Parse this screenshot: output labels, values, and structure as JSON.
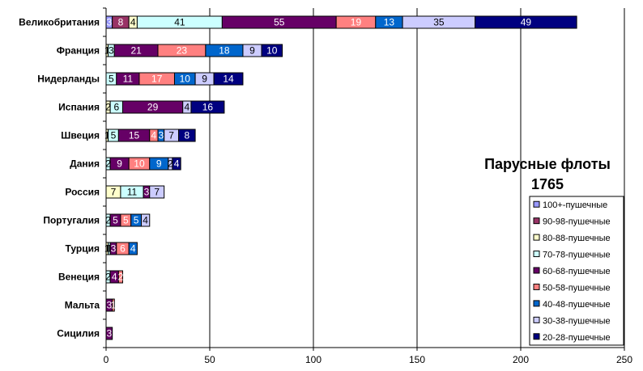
{
  "chart_data": {
    "type": "bar",
    "orientation": "horizontal",
    "stacked": true,
    "title_lines": [
      "Парусные флоты",
      "1765"
    ],
    "categories": [
      "Великобритания",
      "Франция",
      "Нидерланды",
      "Испания",
      "Швеция",
      "Дания",
      "Россия",
      "Португалия",
      "Турция",
      "Венеция",
      "Мальта",
      "Сицилия"
    ],
    "xlim": [
      0,
      250
    ],
    "xticks": [
      0,
      50,
      100,
      150,
      200,
      250
    ],
    "grid": true,
    "legend_position": "bottom-right",
    "series": [
      {
        "name": "100+-пушечные",
        "color": "#9999FF",
        "label_color": "#ffffff",
        "values": [
          3,
          0,
          0,
          0,
          0,
          0,
          0,
          0,
          0,
          0,
          0,
          0
        ]
      },
      {
        "name": "90-98-пушечные",
        "color": "#993366",
        "label_color": "#ffffff",
        "values": [
          8,
          0,
          0,
          0,
          0,
          0,
          0,
          0,
          0,
          0,
          0,
          0
        ]
      },
      {
        "name": "80-88-пушечные",
        "color": "#FFFFCC",
        "label_color": "#000000",
        "values": [
          4,
          1,
          0,
          2,
          1,
          0,
          7,
          0,
          1,
          0,
          0,
          0
        ]
      },
      {
        "name": "70-78-пушечные",
        "color": "#CCFFFF",
        "label_color": "#000000",
        "values": [
          41,
          3,
          5,
          6,
          5,
          2,
          11,
          2,
          1,
          2,
          0,
          0
        ]
      },
      {
        "name": "60-68-пушечные",
        "color": "#660066",
        "label_color": "#ffffff",
        "values": [
          55,
          21,
          11,
          29,
          15,
          9,
          3,
          5,
          3,
          4,
          3,
          3
        ]
      },
      {
        "name": "50-58-пушечные",
        "color": "#FF8080",
        "label_color": "#ffffff",
        "values": [
          19,
          23,
          17,
          0,
          4,
          10,
          0,
          5,
          6,
          2,
          1,
          0
        ]
      },
      {
        "name": "40-48-пушечные",
        "color": "#0066CC",
        "label_color": "#ffffff",
        "values": [
          13,
          18,
          10,
          0,
          3,
          9,
          0,
          5,
          4,
          0,
          0,
          0
        ]
      },
      {
        "name": "30-38-пушечные",
        "color": "#CCCCFF",
        "label_color": "#000000",
        "values": [
          35,
          9,
          9,
          4,
          7,
          2,
          7,
          4,
          0,
          0,
          0,
          0
        ]
      },
      {
        "name": "20-28-пушечные",
        "color": "#000080",
        "label_color": "#ffffff",
        "values": [
          49,
          10,
          14,
          16,
          8,
          4,
          0,
          0,
          0,
          0,
          0,
          0
        ]
      }
    ]
  }
}
